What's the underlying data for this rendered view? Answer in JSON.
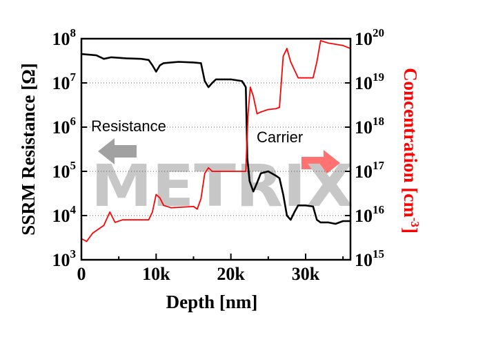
{
  "chart_data": {
    "type": "line",
    "xlabel": "Depth [nm]",
    "ylabel_left": "SSRM Resistance [Ω]",
    "ylabel_right": "Concentration [cm",
    "ylabel_right_sup": "-3",
    "ylabel_right_close": "]",
    "xlim": [
      0,
      36000
    ],
    "ylim_left": [
      1000,
      100000000
    ],
    "ylim_right": [
      1000000000000000.0,
      1e+20
    ],
    "y_scale": "log",
    "x_ticks": [
      {
        "value": 0,
        "label": "0"
      },
      {
        "value": 10000,
        "label": "10k"
      },
      {
        "value": 20000,
        "label": "20k"
      },
      {
        "value": 30000,
        "label": "30k"
      }
    ],
    "y_left_ticks": [
      {
        "exp": 3,
        "base": "10",
        "sup": "3"
      },
      {
        "exp": 4,
        "base": "10",
        "sup": "4"
      },
      {
        "exp": 5,
        "base": "10",
        "sup": "5"
      },
      {
        "exp": 6,
        "base": "10",
        "sup": "6"
      },
      {
        "exp": 7,
        "base": "10",
        "sup": "7"
      },
      {
        "exp": 8,
        "base": "10",
        "sup": "8"
      }
    ],
    "y_right_ticks": [
      {
        "exp": 15,
        "base": "10",
        "sup": "15"
      },
      {
        "exp": 16,
        "base": "10",
        "sup": "16"
      },
      {
        "exp": 17,
        "base": "10",
        "sup": "17"
      },
      {
        "exp": 18,
        "base": "10",
        "sup": "18"
      },
      {
        "exp": 19,
        "base": "10",
        "sup": "19"
      },
      {
        "exp": 20,
        "base": "10",
        "sup": "20"
      }
    ],
    "grid": "dotted horizontal",
    "annotations": [
      {
        "text": "Resistance"
      },
      {
        "text": "Carrier"
      }
    ],
    "series": [
      {
        "color": "#000000",
        "axis": "left",
        "x": [
          0,
          2000,
          3000,
          4000,
          6000,
          8000,
          9000,
          9500,
          10000,
          10500,
          11000,
          13000,
          15000,
          16000,
          16500,
          17000,
          17500,
          18000,
          20000,
          21500,
          22000,
          22200,
          22500,
          23000,
          23500,
          24000,
          25000,
          26000,
          26500,
          27000,
          27500,
          28000,
          28500,
          29000,
          30000,
          31000,
          31500,
          32000,
          33000,
          34000,
          35000,
          36000
        ],
        "y": [
          45000000,
          42000000,
          35000000,
          38000000,
          36000000,
          35000000,
          33000000,
          25000000,
          18000000,
          25000000,
          28000000,
          30000000,
          29000000,
          28000000,
          11000000,
          8000000,
          10000000,
          12000000,
          12000000,
          11000000,
          8000000,
          200000,
          60000,
          35000,
          55000,
          90000,
          100000,
          80000,
          70000,
          30000,
          10000,
          8000,
          12000,
          17000,
          17000,
          16000,
          8000,
          7000,
          7000,
          6500,
          7500,
          7500
        ]
      },
      {
        "color": "#ff0000",
        "axis": "right",
        "x": [
          0,
          700,
          1500,
          3000,
          3800,
          4500,
          5500,
          7000,
          9000,
          9500,
          10000,
          10500,
          11000,
          12000,
          15000,
          15500,
          16000,
          16500,
          17000,
          17500,
          18000,
          20000,
          22000,
          22300,
          22600,
          23000,
          23500,
          24000,
          25000,
          26000,
          26500,
          27000,
          27500,
          28000,
          29000,
          30000,
          31000,
          31500,
          32000,
          33000,
          35000,
          36000
        ],
        "y": [
          3000000000000000.0,
          2600000000000000.0,
          4000000000000000.0,
          6000000000000000.0,
          1.2e+16,
          7000000000000000.0,
          8000000000000000.0,
          8000000000000000.0,
          8000000000000000.0,
          1.2e+16,
          3e+16,
          2.5e+16,
          1.7e+16,
          1.5e+16,
          1.6e+16,
          1.4e+16,
          2.4e+16,
          9e+16,
          1.2e+17,
          1e+17,
          1e+17,
          1e+17,
          1e+17,
          2e+18,
          8e+18,
          5e+18,
          2e+18,
          2.2e+18,
          2.5e+18,
          2.6e+18,
          2.8e+18,
          4e+19,
          6e+19,
          3e+19,
          1.3e+19,
          1.3e+19,
          1.3e+19,
          3e+19,
          9e+19,
          8e+19,
          7e+19,
          6e+19
        ]
      }
    ]
  },
  "watermark": {
    "text": "METRIX"
  }
}
